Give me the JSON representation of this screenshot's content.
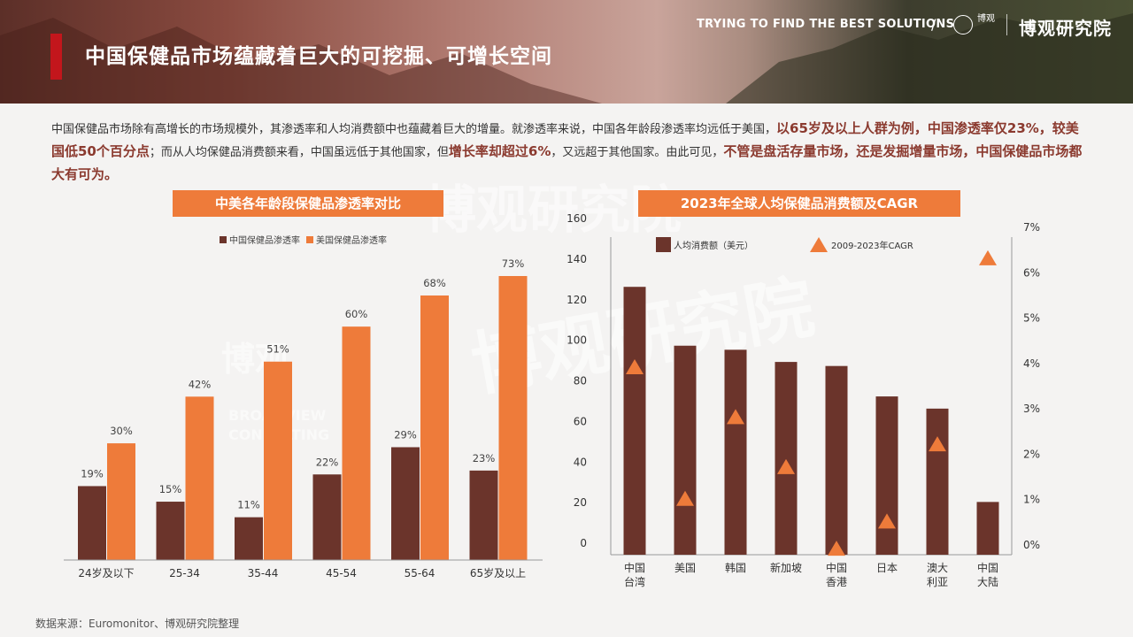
{
  "header": {
    "title": "中国保健品市场蕴藏着巨大的可挖掘、可增长空间",
    "tagline": "TRYING TO FIND THE BEST SOLUTIONS",
    "separator": "/",
    "logo_small": "博观",
    "logo_big": "博观研究院"
  },
  "intro": {
    "p1": "中国保健品市场除有高增长的市场规模外，其渗透率和人均消费额中也蕴藏着巨大的增量。就渗透率来说，中国各年龄段渗透率均远低于美国，",
    "h1": "以65岁及以上人群为例，中国渗透率仅23%，较美国低50个百分点",
    "p2": "；而从人均保健品消费额来看，中国虽远低于其他国家，但",
    "h2": "增长率却超过6%",
    "p3": "，又远超于其他国家。由此可见，",
    "h3": "不管是盘活存量市场，还是发掘增量市场，中国保健品市场都大有可为。"
  },
  "watermarks": {
    "w1": "博观研究院",
    "w2": "博观研究院",
    "w3": "博观",
    "w4": "BROADVIEW",
    "w5": "CONSULTING"
  },
  "panel1": {
    "title": "中美各年龄段保健品渗透率对比"
  },
  "panel2": {
    "title": "2023年全球人均保健品消费额及CAGR"
  },
  "source": "数据来源：Euromonitor、博观研究院整理",
  "colors": {
    "china": "#6b342b",
    "us": "#ee7b3a",
    "accent": "#c3161c"
  },
  "chart_data": [
    {
      "type": "bar",
      "categories": [
        "24岁及以下",
        "25-34",
        "35-44",
        "45-54",
        "55-64",
        "65岁及以上"
      ],
      "series": [
        {
          "name": "中国保健品渗透率",
          "values": [
            19,
            15,
            11,
            22,
            29,
            23
          ],
          "labels": [
            "19%",
            "15%",
            "11%",
            "22%",
            "29%",
            "23%"
          ]
        },
        {
          "name": "美国保健品渗透率",
          "values": [
            30,
            42,
            51,
            60,
            68,
            73
          ],
          "labels": [
            "30%",
            "42%",
            "51%",
            "60%",
            "68%",
            "73%"
          ]
        }
      ],
      "ylim": [
        0,
        80
      ],
      "legend": "top-left"
    },
    {
      "type": "bar",
      "categories": [
        "中国\n台湾",
        "美国",
        "韩国",
        "新加坡",
        "中国\n香港",
        "日本",
        "澳大\n利亚",
        "中国\n大陆"
      ],
      "series": [
        {
          "name": "人均消费额（美元）",
          "type": "bar",
          "axis": "left",
          "values": [
            132,
            103,
            101,
            95,
            93,
            78,
            72,
            26
          ]
        },
        {
          "name": "2009-2023年CAGR",
          "type": "scatter",
          "marker": "triangle",
          "axis": "right",
          "values": [
            3.9,
            1.0,
            2.8,
            1.7,
            -0.1,
            0.5,
            2.2,
            6.3
          ]
        }
      ],
      "left_axis": {
        "ticks": [
          "0",
          "20",
          "40",
          "60",
          "80",
          "100",
          "120",
          "140",
          "160"
        ],
        "ylim": [
          0,
          160
        ]
      },
      "right_axis": {
        "ticks": [
          "0%",
          "1%",
          "2%",
          "3%",
          "4%",
          "5%",
          "6%",
          "7%"
        ],
        "ylim": [
          0,
          7
        ]
      },
      "legend": "top"
    }
  ]
}
